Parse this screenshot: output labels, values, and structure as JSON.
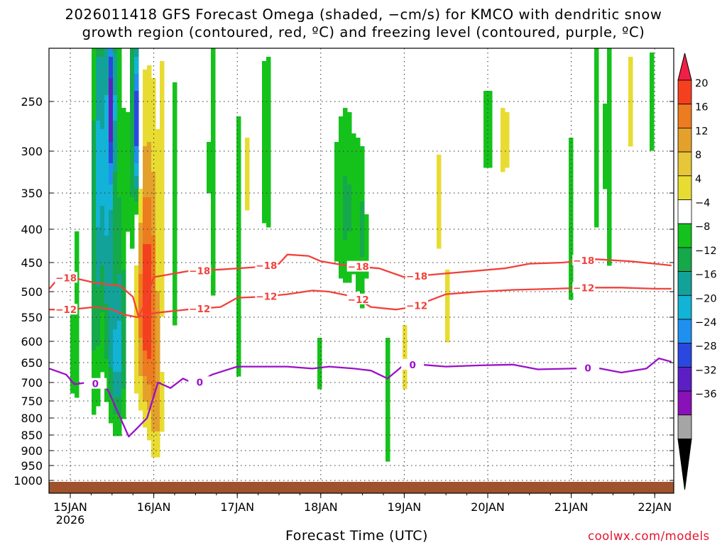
{
  "title_line1": "2026011418 GFS Forecast Omega (shaded, −cm/s) for KMCO with dendritic snow",
  "title_line2": "growth region (contoured, red, ºC) and freezing level (contoured, purple, ºC)",
  "xlabel": "Forecast Time (UTC)",
  "credit": "coolwx.com/models",
  "colors": {
    "omega_scale": [
      "#f01f46",
      "#f5401f",
      "#ed7b1f",
      "#e3a12c",
      "#e7c63a",
      "#e8dc32",
      "#ffffff",
      "#15c21b",
      "#15a94b",
      "#12a29a",
      "#12b3d6",
      "#1f90f0",
      "#2a48e0",
      "#5c1fc4",
      "#8a10b8",
      "#a5a5a5",
      "#000000"
    ],
    "dgz_contour": "#f2413b",
    "freezing_contour": "#9b10c8",
    "ground": "#a0522d"
  },
  "chart_data": {
    "type": "heatmap",
    "x_tick_labels": [
      "15JAN",
      "16JAN",
      "17JAN",
      "18JAN",
      "19JAN",
      "20JAN",
      "21JAN",
      "22JAN"
    ],
    "x_year_label": "2026",
    "y_tick_labels": [
      "250",
      "300",
      "350",
      "400",
      "450",
      "500",
      "550",
      "600",
      "650",
      "700",
      "750",
      "800",
      "850",
      "900",
      "950",
      "1000"
    ],
    "y_pressure_hpa": [
      250,
      300,
      350,
      400,
      450,
      500,
      550,
      600,
      650,
      700,
      750,
      800,
      850,
      900,
      950,
      1000
    ],
    "colorbar_labels": [
      "20",
      "16",
      "12",
      "8",
      "4",
      "−4",
      "−8",
      "−12",
      "−16",
      "−20",
      "−24",
      "−28",
      "−32",
      "−36"
    ],
    "colorbar_values": [
      20,
      16,
      12,
      8,
      4,
      -4,
      -8,
      -12,
      -16,
      -20,
      -24,
      -28,
      -32,
      -36
    ],
    "grid": true,
    "contours": [
      {
        "label": "−18",
        "color": "dgz",
        "days": [
          14.75,
          14.85,
          15.0,
          15.3,
          15.6,
          15.75,
          15.82,
          15.9,
          16.0,
          16.4,
          16.8,
          17.2,
          17.5,
          17.6,
          17.85,
          18.0,
          18.3,
          18.7,
          19.0,
          19.4,
          19.8,
          20.2,
          20.5,
          20.9,
          21.3,
          21.7,
          22.0,
          22.2
        ],
        "pressure": [
          495,
          478,
          475,
          485,
          490,
          510,
          550,
          520,
          475,
          465,
          462,
          458,
          452,
          438,
          440,
          448,
          455,
          460,
          475,
          470,
          465,
          460,
          452,
          450,
          445,
          448,
          452,
          455
        ]
      },
      {
        "label": "−12",
        "color": "dgz",
        "days": [
          14.75,
          15.0,
          15.3,
          15.5,
          15.65,
          15.8,
          16.0,
          16.4,
          16.8,
          17.0,
          17.3,
          17.6,
          17.9,
          18.1,
          18.4,
          18.6,
          18.9,
          19.1,
          19.5,
          19.9,
          20.3,
          20.8,
          21.2,
          21.6,
          22.0,
          22.2
        ],
        "pressure": [
          535,
          535,
          530,
          535,
          545,
          550,
          542,
          535,
          530,
          512,
          510,
          505,
          498,
          500,
          510,
          530,
          535,
          530,
          505,
          500,
          497,
          495,
          493,
          493,
          495,
          495
        ]
      },
      {
        "label": "0",
        "color": "freezing",
        "days": [
          14.75,
          14.95,
          15.05,
          15.2,
          15.35,
          15.45,
          15.6,
          15.7,
          15.8,
          15.92,
          16.05,
          16.2,
          16.35,
          16.5,
          16.7,
          16.85,
          17.0,
          17.3,
          17.6,
          17.9,
          18.1,
          18.4,
          18.6,
          18.8,
          19.0,
          19.2,
          19.5,
          19.9,
          20.3,
          20.6,
          21.0,
          21.3,
          21.6,
          21.9,
          22.05,
          22.2
        ],
        "pressure": [
          665,
          680,
          705,
          700,
          705,
          720,
          800,
          855,
          830,
          800,
          700,
          715,
          690,
          705,
          680,
          670,
          660,
          660,
          660,
          665,
          660,
          665,
          670,
          690,
          655,
          655,
          660,
          657,
          655,
          667,
          665,
          663,
          675,
          665,
          640,
          648
        ]
      }
    ]
  }
}
